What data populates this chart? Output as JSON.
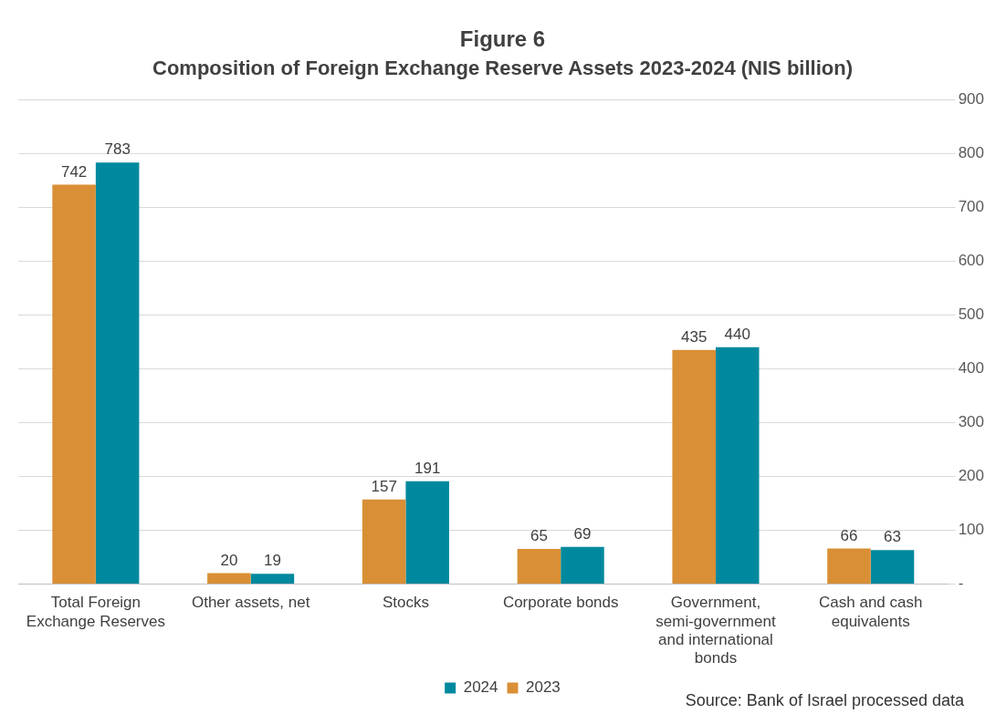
{
  "chart_data": {
    "type": "bar",
    "title": "Figure 6",
    "subtitle": "Composition of Foreign Exchange Reserve Assets 2023-2024 (NIS billion)",
    "categories": [
      "Total Foreign Exchange Reserves",
      "Other assets, net",
      "Stocks",
      "Corporate bonds",
      "Government, semi-government and international bonds",
      "Cash and cash equivalents"
    ],
    "series": [
      {
        "name": "2023",
        "color": "#d98f35",
        "values": [
          742,
          20,
          157,
          65,
          435,
          66
        ]
      },
      {
        "name": "2024",
        "color": "#00899e",
        "values": [
          783,
          19,
          191,
          69,
          440,
          63
        ]
      }
    ],
    "ylim": [
      0,
      900
    ],
    "yticks": [
      {
        "value": 0,
        "label": "-"
      },
      100,
      200,
      300,
      400,
      500,
      600,
      700,
      800,
      900
    ],
    "grid": "y",
    "legend": "bottom",
    "data_labels": true,
    "annotations": [
      "Source: Bank of Israel processed data"
    ]
  }
}
